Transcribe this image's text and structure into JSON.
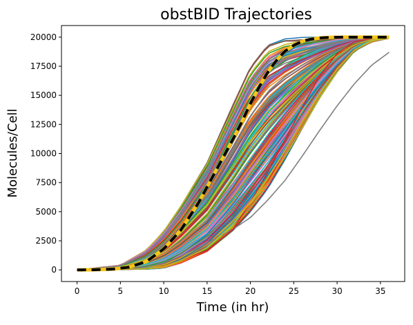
{
  "chart_data": {
    "type": "line",
    "title": "obstBID Trajectories",
    "xlabel": "Time (in hr)",
    "ylabel": "Molecules/Cell",
    "xlim": [
      -1.8,
      37.8
    ],
    "ylim": [
      -1000,
      21000
    ],
    "xticks": [
      0,
      5,
      10,
      15,
      20,
      25,
      30,
      35
    ],
    "yticks": [
      0,
      2500,
      5000,
      7500,
      10000,
      12500,
      15000,
      17500,
      20000
    ],
    "grid": false,
    "legend": "none",
    "trajectory_count": 200,
    "trajectory_palette": [
      "#1f77b4",
      "#ff7f0e",
      "#2ca02c",
      "#d62728",
      "#9467bd",
      "#8c564b",
      "#e377c2",
      "#7f7f7f",
      "#bcbd22",
      "#17becf"
    ],
    "envelope": {
      "earliest": {
        "x": [
          0,
          5,
          8,
          10,
          12,
          15,
          18,
          20,
          22,
          24,
          26,
          28,
          30,
          36
        ],
        "y": [
          0,
          400,
          1700,
          3300,
          5500,
          9200,
          14200,
          17400,
          19300,
          19850,
          19980,
          20000,
          20000,
          20000
        ]
      },
      "latest": {
        "x": [
          0,
          8,
          10,
          12,
          15,
          18,
          20,
          22,
          24,
          26,
          28,
          30,
          32,
          34,
          36
        ],
        "y": [
          0,
          60,
          150,
          600,
          1600,
          3400,
          5000,
          7000,
          9500,
          12200,
          14800,
          17000,
          18800,
          19600,
          19900
        ]
      }
    },
    "outliers": [
      {
        "color": "#7f7f7f",
        "x": [
          0,
          6,
          8,
          10,
          12,
          14,
          16,
          18,
          20,
          22,
          24,
          26,
          28,
          30,
          32,
          34,
          36
        ],
        "y": [
          0,
          80,
          250,
          600,
          1200,
          1900,
          2700,
          3500,
          4500,
          6000,
          7700,
          9800,
          12000,
          14100,
          16000,
          17600,
          18700
        ]
      },
      {
        "color": "#d62728",
        "x": [
          0,
          8,
          10,
          12,
          15,
          18,
          20,
          22,
          24,
          26,
          28,
          30,
          32,
          34,
          36
        ],
        "y": [
          0,
          80,
          350,
          800,
          1700,
          3500,
          5800,
          8400,
          11200,
          14000,
          16700,
          18600,
          19600,
          19900,
          20000
        ]
      },
      {
        "color": "#bcbd22",
        "x": [
          0,
          8,
          10,
          12,
          15,
          18,
          20,
          22,
          24,
          26,
          28,
          30,
          32,
          34,
          36
        ],
        "y": [
          0,
          90,
          300,
          800,
          1900,
          3900,
          5800,
          7900,
          10300,
          12800,
          15200,
          17300,
          18900,
          19700,
          19950
        ]
      }
    ],
    "mean_line": {
      "style": "black dashed over yellow",
      "color_dash": "#000000",
      "color_under": "#f5c518",
      "x": [
        0,
        2,
        4,
        6,
        8,
        10,
        12,
        14,
        16,
        18,
        19,
        20,
        21,
        22,
        23,
        24,
        25,
        26,
        27,
        28,
        29,
        30,
        32,
        34,
        36
      ],
      "y": [
        0,
        10,
        60,
        230,
        720,
        1800,
        3450,
        5750,
        8500,
        11250,
        12700,
        14300,
        15700,
        17000,
        18000,
        18800,
        19300,
        19650,
        19830,
        19930,
        19975,
        19995,
        20000,
        20000,
        20000
      ]
    },
    "overlay_line": {
      "color": "#1f77b4",
      "x": [
        0,
        4,
        6,
        8,
        10,
        12,
        14,
        16,
        18,
        20,
        22,
        24,
        26,
        28,
        30,
        32,
        34,
        36
      ],
      "y": [
        0,
        60,
        220,
        700,
        1700,
        3300,
        5500,
        8200,
        11000,
        14100,
        16800,
        18600,
        19500,
        19850,
        19970,
        20000,
        20000,
        20000
      ]
    }
  }
}
